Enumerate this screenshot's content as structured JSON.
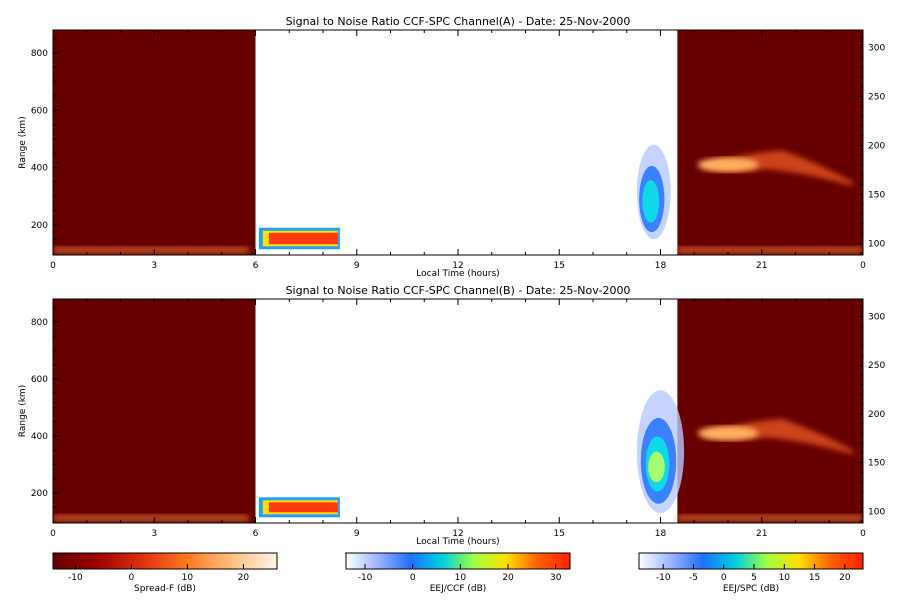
{
  "colors": {
    "spread_f_bg": "#660000",
    "frame": "#000000",
    "background": "#ffffff"
  },
  "chart_data": [
    {
      "type": "heatmap",
      "title": "Signal to Noise Ratio CCF-SPC Channel(A) - Date: 25-Nov-2000",
      "xlabel": "Local Time (hours)",
      "ylabel": "Range (km)",
      "x_ticks": [
        "0",
        "3",
        "6",
        "9",
        "12",
        "15",
        "18",
        "21",
        "0"
      ],
      "xlim": [
        0,
        24
      ],
      "y_ticks": [
        200,
        400,
        600,
        800
      ],
      "ylim": [
        95,
        880
      ],
      "y2_ticks": [
        100,
        150,
        200,
        250,
        300
      ],
      "y2lim": [
        88,
        318
      ],
      "regions": [
        {
          "name": "Spread-F",
          "x": [
            0,
            6
          ],
          "y": [
            95,
            880
          ],
          "value_db": -14
        },
        {
          "name": "EEJ/CCF",
          "x": [
            6.1,
            8.5
          ],
          "y": [
            115,
            190
          ],
          "value_db": 28
        },
        {
          "name": "EEJ/SPC",
          "x": [
            17.3,
            18.3
          ],
          "y": [
            150,
            480
          ],
          "value_db": -4
        },
        {
          "name": "Spread-F",
          "x": [
            18.5,
            24
          ],
          "y": [
            95,
            880
          ],
          "value_db": -14
        },
        {
          "name": "Spread-F",
          "x": [
            19.2,
            23.8
          ],
          "y": [
            340,
            470
          ],
          "value_db": 12
        }
      ]
    },
    {
      "type": "heatmap",
      "title": "Signal to Noise Ratio CCF-SPC Channel(B) - Date: 25-Nov-2000",
      "xlabel": "Local Time (hours)",
      "ylabel": "Range (km)",
      "x_ticks": [
        "0",
        "3",
        "6",
        "9",
        "12",
        "15",
        "18",
        "21",
        "0"
      ],
      "xlim": [
        0,
        24
      ],
      "y_ticks": [
        200,
        400,
        600,
        800
      ],
      "ylim": [
        95,
        880
      ],
      "y2_ticks": [
        100,
        150,
        200,
        250,
        300
      ],
      "y2lim": [
        88,
        318
      ],
      "regions": [
        {
          "name": "Spread-F",
          "x": [
            0,
            6
          ],
          "y": [
            95,
            880
          ],
          "value_db": -14
        },
        {
          "name": "EEJ/CCF",
          "x": [
            6.1,
            8.5
          ],
          "y": [
            115,
            185
          ],
          "value_db": 28
        },
        {
          "name": "EEJ/SPC",
          "x": [
            17.3,
            18.7
          ],
          "y": [
            130,
            560
          ],
          "value_db": 2
        },
        {
          "name": "Spread-F",
          "x": [
            18.5,
            24
          ],
          "y": [
            95,
            880
          ],
          "value_db": -14
        },
        {
          "name": "Spread-F",
          "x": [
            19.2,
            23.8
          ],
          "y": [
            340,
            470
          ],
          "value_db": 12
        }
      ]
    }
  ],
  "colorbars": [
    {
      "label": "Spread-F (dB)",
      "ticks": [
        "-10",
        "0",
        "10",
        "20"
      ],
      "range": [
        -14,
        26
      ],
      "stops": [
        "#660000",
        "#a00000",
        "#e03010",
        "#ff7a20",
        "#ffc080",
        "#fff4e8"
      ]
    },
    {
      "label": "EEJ/CCF (dB)",
      "ticks": [
        "-10",
        "0",
        "10",
        "20",
        "30"
      ],
      "range": [
        -14,
        33
      ],
      "stops": [
        "#ffffff",
        "#9ab4ff",
        "#2070ff",
        "#00d0e0",
        "#a0ff40",
        "#ffe000",
        "#ff6000",
        "#ff2000"
      ]
    },
    {
      "label": "EEJ/SPC (dB)",
      "ticks": [
        "-10",
        "-5",
        "0",
        "5",
        "10",
        "15",
        "20"
      ],
      "range": [
        -14,
        23
      ],
      "stops": [
        "#ffffff",
        "#9ab4ff",
        "#2070ff",
        "#00d0e0",
        "#a0ff40",
        "#ffe000",
        "#ff6000",
        "#ff2000"
      ]
    }
  ]
}
